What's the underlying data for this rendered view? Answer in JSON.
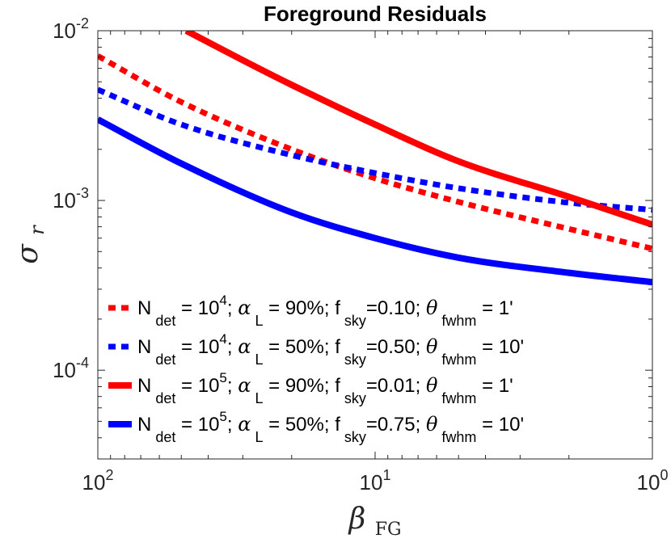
{
  "chart_data": {
    "type": "line",
    "title": "Foreground Residuals",
    "xlabel": {
      "symbol": "β",
      "subscript": "FG"
    },
    "ylabel": {
      "symbol": "σ",
      "subscript": "r"
    },
    "x_scale": "log",
    "y_scale": "log",
    "x_reversed": true,
    "xlim": [
      100,
      1
    ],
    "ylim": [
      3e-05,
      0.01
    ],
    "x_ticks": [
      {
        "value": 100,
        "base": "10",
        "exp": "2"
      },
      {
        "value": 10,
        "base": "10",
        "exp": "1"
      },
      {
        "value": 1,
        "base": "10",
        "exp": "0"
      }
    ],
    "y_ticks": [
      {
        "value": 0.01,
        "base": "10",
        "exp": "-2"
      },
      {
        "value": 0.001,
        "base": "10",
        "exp": "-3"
      },
      {
        "value": 0.0001,
        "base": "10",
        "exp": "-4"
      }
    ],
    "grid": false,
    "legend_position": "bottom-left",
    "series": [
      {
        "name": "N_det = 10^4; α_L = 90%; f_sky=0.10; θ_fwhm = 1'",
        "color": "#ff0000",
        "style": "dotted",
        "legend": {
          "n_exp": "4",
          "alpha": "90%",
          "fsky": "0.10",
          "theta": "1'"
        },
        "points": [
          [
            100,
            0.0071
          ],
          [
            50,
            0.0038
          ],
          [
            20,
            0.002
          ],
          [
            10,
            0.00135
          ],
          [
            5,
            0.00098
          ],
          [
            2,
            0.00068
          ],
          [
            1,
            0.00052
          ]
        ]
      },
      {
        "name": "N_det = 10^4; α_L = 50%; f_sky=0.50; θ_fwhm = 10'",
        "color": "#0000ff",
        "style": "dotted",
        "legend": {
          "n_exp": "4",
          "alpha": "50%",
          "fsky": "0.50",
          "theta": "10'"
        },
        "points": [
          [
            100,
            0.0045
          ],
          [
            50,
            0.0028
          ],
          [
            20,
            0.00185
          ],
          [
            10,
            0.00145
          ],
          [
            5,
            0.00118
          ],
          [
            2,
            0.00097
          ],
          [
            1,
            0.00088
          ]
        ]
      },
      {
        "name": "N_det = 10^5; α_L = 90%; f_sky=0.01; θ_fwhm = 1'",
        "color": "#ff0000",
        "style": "solid",
        "legend": {
          "n_exp": "5",
          "alpha": "90%",
          "fsky": "0.01",
          "theta": "1'"
        },
        "points": [
          [
            48,
            0.01
          ],
          [
            30,
            0.0067
          ],
          [
            20,
            0.0048
          ],
          [
            10,
            0.0028
          ],
          [
            5,
            0.0017
          ],
          [
            2,
            0.00105
          ],
          [
            1,
            0.00072
          ]
        ]
      },
      {
        "name": "N_det = 10^5; α_L = 50%; f_sky=0.75; θ_fwhm = 10'",
        "color": "#0000ff",
        "style": "solid",
        "legend": {
          "n_exp": "5",
          "alpha": "50%",
          "fsky": "0.75",
          "theta": "10'"
        },
        "points": [
          [
            100,
            0.003
          ],
          [
            50,
            0.00165
          ],
          [
            20,
            0.00085
          ],
          [
            10,
            0.0006
          ],
          [
            5,
            0.00046
          ],
          [
            2,
            0.000375
          ],
          [
            1,
            0.00033
          ]
        ]
      }
    ]
  }
}
